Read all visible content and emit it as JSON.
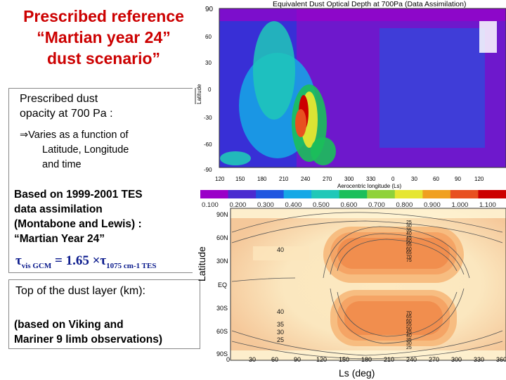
{
  "title": {
    "line1": "Prescribed reference",
    "line2": "“Martian year 24”",
    "line3": "dust scenario”"
  },
  "panel1": {
    "heading_line1": "Prescribed dust",
    "heading_line2": "opacity at 700 Pa :",
    "arrow": "⇒",
    "varies_line1": "Varies as a function of",
    "varies_line2": "Latitude, Longitude",
    "varies_line3": "and time",
    "tes_line1": "Based on 1999-2001 TES",
    "tes_line2": "data assimilation",
    "tes_line3": "(Montabone and Lewis) :",
    "tes_line4": "“Martian Year 24”",
    "tau_symbol": "τ",
    "tau_sub1": "vis GCM",
    "tau_mid": "= 1.65 ×",
    "tau_sub2": "1075 cm-1 TES"
  },
  "panel2": {
    "heading": "Top of the dust layer (km):",
    "note_line1": "(based on Viking and",
    "note_line2": "Mariner 9 limb observations)"
  },
  "map": {
    "title": "Equivalent Dust Optical Depth at 700Pa (Data Assimilation)",
    "ylabel": "Latitude",
    "xlabel": "Aerocentric longitude (Ls)",
    "yticks": [
      "90",
      "60",
      "30",
      "0",
      "-30",
      "-60",
      "-90"
    ],
    "xticks": [
      "120",
      "150",
      "180",
      "210",
      "240",
      "270",
      "300",
      "330",
      "0",
      "30",
      "60",
      "90",
      "120"
    ],
    "colorbar_labels": [
      "0.100",
      "0.200",
      "0.300",
      "0.400",
      "0.500",
      "0.600",
      "0.700",
      "0.800",
      "0.900",
      "1.000",
      "1.100"
    ],
    "colorbar_colors": [
      "#9a00c8",
      "#4b2bd0",
      "#1f56e0",
      "#15a8e6",
      "#20c8b8",
      "#1bbf5a",
      "#8fd23a",
      "#e6e632",
      "#f0a020",
      "#e85020",
      "#cc0000"
    ]
  },
  "contour": {
    "ylabel": "Latitude",
    "xlabel": "Ls",
    "xunit": "(deg)",
    "yticks": [
      "90N",
      "60N",
      "30N",
      "EQ",
      "30S",
      "60S",
      "90S"
    ],
    "xticks": [
      "0",
      "30",
      "60",
      "90",
      "120",
      "150",
      "180",
      "210",
      "240",
      "270",
      "300",
      "330",
      "360"
    ],
    "north_values": [
      "25",
      "30",
      "35",
      "40",
      "45",
      "50",
      "55",
      "60",
      "65",
      "70",
      "75"
    ],
    "south_values": [
      "70",
      "65",
      "60",
      "55",
      "50",
      "45",
      "40",
      "35",
      "30",
      "25"
    ],
    "left_north": "40",
    "left_south": [
      "40",
      "35",
      "30",
      "25"
    ]
  }
}
